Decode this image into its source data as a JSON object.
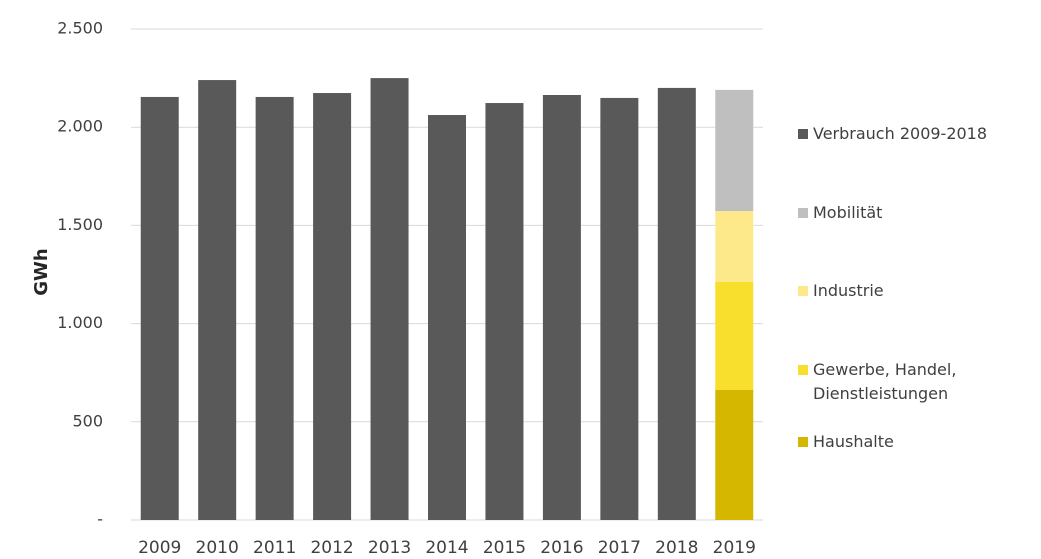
{
  "chart_data": {
    "type": "stacked_bar",
    "y_label": "GWh",
    "categories": [
      "2009",
      "2010",
      "2011",
      "2012",
      "2013",
      "2014",
      "2015",
      "2016",
      "2017",
      "2018",
      "2019"
    ],
    "series": [
      {
        "name": "Verbrauch 2009-2018",
        "color": "#595959",
        "values": [
          2154,
          2240,
          2154,
          2174,
          2250,
          2062,
          2123,
          2164,
          2149,
          2200,
          null
        ]
      },
      {
        "name": "Mobilität",
        "color": "#bfbfbf",
        "values": [
          null,
          null,
          null,
          null,
          null,
          null,
          null,
          null,
          null,
          null,
          617
        ]
      },
      {
        "name": "Industrie",
        "color": "#fde98a",
        "values": [
          null,
          null,
          null,
          null,
          null,
          null,
          null,
          null,
          null,
          null,
          361
        ]
      },
      {
        "name": "Gewerbe, Handel, Dienstleistungen",
        "color": "#f8df2e",
        "values": [
          null,
          null,
          null,
          null,
          null,
          null,
          null,
          null,
          null,
          null,
          550
        ]
      },
      {
        "name": "Haushalte",
        "color": "#d6b700",
        "values": [
          null,
          null,
          null,
          null,
          null,
          null,
          null,
          null,
          null,
          null,
          662
        ]
      }
    ],
    "ylim": [
      0,
      2500
    ],
    "yticks": [
      {
        "value": 0,
        "label": "-"
      },
      500,
      {
        "value": 1000,
        "label": "1.000"
      },
      {
        "value": 1500,
        "label": "1.500"
      },
      {
        "value": 2000,
        "label": "2.000"
      },
      {
        "value": 2500,
        "label": "2.500"
      }
    ],
    "grid": true,
    "legend": "right"
  }
}
